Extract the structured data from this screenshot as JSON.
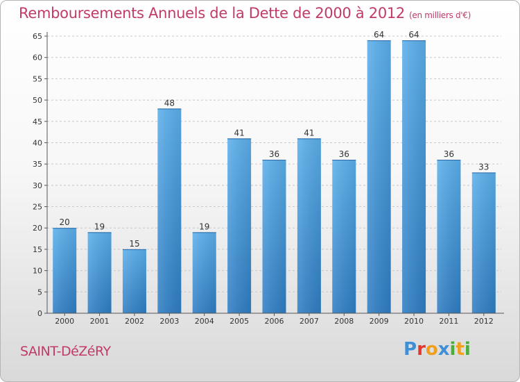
{
  "chart_data": {
    "type": "bar",
    "title": "Remboursements Annuels de la Dette de 2000 à 2012",
    "subtitle": "(en milliers d'€)",
    "categories": [
      "2000",
      "2001",
      "2002",
      "2003",
      "2004",
      "2005",
      "2006",
      "2007",
      "2008",
      "2009",
      "2010",
      "2011",
      "2012"
    ],
    "values": [
      20,
      19,
      15,
      48,
      19,
      41,
      36,
      41,
      36,
      64,
      64,
      36,
      33
    ],
    "ylim": [
      0,
      65
    ],
    "yticks": [
      0,
      5,
      10,
      15,
      20,
      25,
      30,
      35,
      40,
      45,
      50,
      55,
      60,
      65
    ],
    "grid": true,
    "bar_color": "#4f9fdd"
  },
  "commune": "SAINT-DéZéRY",
  "brand": {
    "letters": [
      {
        "ch": "P",
        "color": "#3e8fd6"
      },
      {
        "ch": "r",
        "color": "#e2372f"
      },
      {
        "ch": "o",
        "color": "#f0a01e"
      },
      {
        "ch": "x",
        "color": "#3e8fd6"
      },
      {
        "ch": "i",
        "color": "#4aad3c"
      },
      {
        "ch": "t",
        "color": "#f0a01e"
      },
      {
        "ch": "i",
        "color": "#4aad3c"
      }
    ]
  }
}
